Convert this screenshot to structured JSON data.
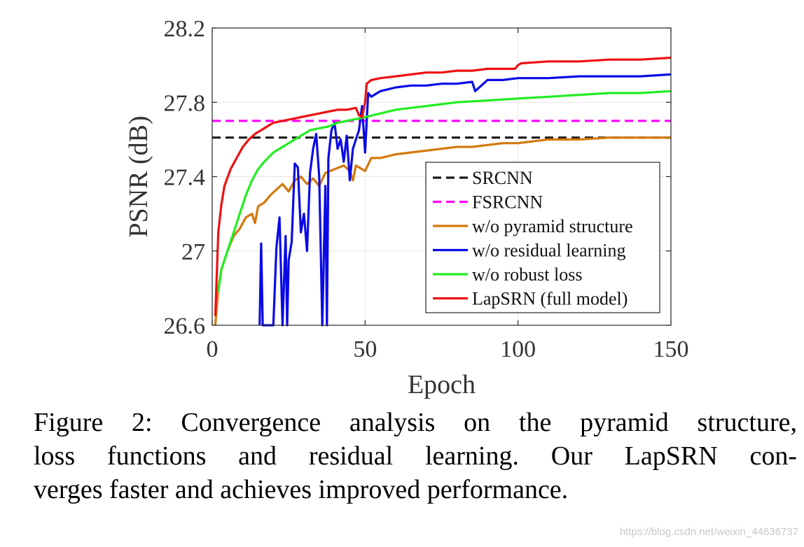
{
  "chart_data": {
    "type": "line",
    "title": "",
    "xlabel": "Epoch",
    "ylabel": "PSNR (dB)",
    "xlim": [
      0,
      150
    ],
    "ylim": [
      26.6,
      28.2
    ],
    "xticks": [
      0,
      50,
      100,
      150
    ],
    "xtick_labels": [
      "0",
      "50",
      "100",
      "150"
    ],
    "yticks": [
      26.6,
      27.0,
      27.4,
      27.8,
      28.2
    ],
    "ytick_labels": [
      "26.6",
      "27",
      "27.4",
      "27.8",
      "28.2"
    ],
    "grid": true,
    "legend_position": "bottom-right",
    "series": [
      {
        "name": "SRCNN",
        "color": "#1a1a1a",
        "dash": "dashed",
        "x": [
          0,
          150
        ],
        "y": [
          27.61,
          27.61
        ]
      },
      {
        "name": "FSRCNN",
        "color": "#ff00ff",
        "dash": "dashed",
        "x": [
          0,
          150
        ],
        "y": [
          27.7,
          27.7
        ]
      },
      {
        "name": "w/o pyramid structure",
        "color": "#d4780c",
        "dash": "solid",
        "x": [
          1,
          2,
          3,
          5,
          7,
          9,
          11,
          13,
          14,
          15,
          17,
          19,
          21,
          23,
          25,
          27,
          29,
          31,
          33,
          35,
          37,
          40,
          43,
          45,
          46,
          47,
          49,
          50,
          52,
          55,
          60,
          65,
          70,
          75,
          80,
          85,
          90,
          95,
          100,
          105,
          110,
          120,
          130,
          140,
          150
        ],
        "y": [
          26.6,
          26.8,
          26.9,
          27.0,
          27.08,
          27.12,
          27.18,
          27.2,
          27.15,
          27.24,
          27.26,
          27.3,
          27.33,
          27.36,
          27.32,
          27.38,
          27.4,
          27.36,
          27.39,
          27.35,
          27.42,
          27.44,
          27.46,
          27.43,
          27.38,
          27.46,
          27.44,
          27.43,
          27.5,
          27.5,
          27.52,
          27.53,
          27.54,
          27.55,
          27.56,
          27.56,
          27.57,
          27.58,
          27.58,
          27.59,
          27.6,
          27.6,
          27.61,
          27.61,
          27.61
        ]
      },
      {
        "name": "w/o residual learning",
        "color": "#0a0ae6",
        "dash": "solid",
        "x": [
          15.5,
          16,
          16.5,
          20,
          21,
          22,
          23,
          24,
          24.5,
          25,
          26,
          27,
          28,
          29,
          30,
          31,
          32,
          33,
          34,
          35,
          36,
          37,
          37.5,
          38,
          39,
          40,
          41,
          42,
          43,
          44,
          45,
          46,
          47,
          48,
          49,
          50,
          51,
          52,
          55,
          60,
          65,
          70,
          75,
          80,
          85,
          86,
          90,
          95,
          100,
          110,
          120,
          130,
          140,
          150
        ],
        "y": [
          26.58,
          27.04,
          26.58,
          26.58,
          27.02,
          27.18,
          26.58,
          27.08,
          26.58,
          26.95,
          27.05,
          27.47,
          27.45,
          27.1,
          27.2,
          27.0,
          27.42,
          27.55,
          27.63,
          27.4,
          26.58,
          27.35,
          26.58,
          27.5,
          27.65,
          27.69,
          27.55,
          27.6,
          27.48,
          27.62,
          27.38,
          27.55,
          27.6,
          27.65,
          27.78,
          27.53,
          27.85,
          27.83,
          27.86,
          27.88,
          27.89,
          27.89,
          27.9,
          27.9,
          27.91,
          27.86,
          27.92,
          27.92,
          27.93,
          27.93,
          27.94,
          27.94,
          27.94,
          27.95
        ]
      },
      {
        "name": "w/o robust loss",
        "color": "#22ee22",
        "dash": "solid",
        "x": [
          2,
          3,
          5,
          7,
          9,
          11,
          13,
          15,
          17,
          20,
          23,
          26,
          29,
          32,
          35,
          38,
          41,
          44,
          47,
          50,
          55,
          60,
          65,
          70,
          80,
          90,
          100,
          110,
          120,
          130,
          140,
          150
        ],
        "y": [
          26.78,
          26.9,
          27.0,
          27.1,
          27.2,
          27.3,
          27.38,
          27.44,
          27.48,
          27.53,
          27.56,
          27.59,
          27.62,
          27.65,
          27.66,
          27.67,
          27.69,
          27.7,
          27.71,
          27.72,
          27.74,
          27.76,
          27.77,
          27.78,
          27.8,
          27.81,
          27.82,
          27.83,
          27.84,
          27.85,
          27.85,
          27.86
        ]
      },
      {
        "name": "LapSRN (full model)",
        "color": "#ee1111",
        "dash": "solid",
        "x": [
          1,
          2,
          3,
          4,
          6,
          8,
          10,
          12,
          14,
          16,
          18,
          20,
          23,
          26,
          29,
          32,
          35,
          38,
          41,
          44,
          47,
          48,
          49,
          50,
          50.5,
          52,
          55,
          60,
          65,
          70,
          75,
          80,
          85,
          90,
          95,
          99,
          100,
          101,
          110,
          120,
          130,
          140,
          150
        ],
        "y": [
          26.65,
          27.1,
          27.25,
          27.35,
          27.44,
          27.5,
          27.56,
          27.6,
          27.63,
          27.65,
          27.67,
          27.69,
          27.7,
          27.71,
          27.72,
          27.73,
          27.74,
          27.75,
          27.76,
          27.76,
          27.77,
          27.73,
          27.72,
          27.8,
          27.9,
          27.92,
          27.93,
          27.94,
          27.95,
          27.96,
          27.96,
          27.97,
          27.97,
          27.98,
          27.98,
          27.98,
          28.0,
          28.01,
          28.02,
          28.02,
          28.03,
          28.03,
          28.04
        ]
      }
    ]
  },
  "caption": {
    "lines": [
      "Figure 2: Convergence analysis on the pyramid structure,",
      "loss functions and residual learning.  Our LapSRN con-",
      "verges faster and achieves improved performance."
    ]
  },
  "watermark": "https://blog.csdn.net/weixin_44636737"
}
